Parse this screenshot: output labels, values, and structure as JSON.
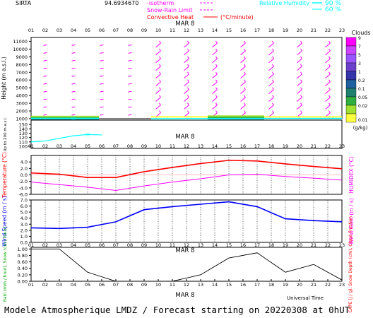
{
  "header": {
    "station": "SIRTA",
    "coords": "94.6934670",
    "legend": [
      {
        "label": "-isotherm",
        "suffix": "",
        "color": "#ff00ff",
        "line_style": "dashed",
        "prefix_style": "mixed"
      },
      {
        "label": "Snow-Rain Limit",
        "suffix": "",
        "color": "#ff00ff",
        "line_style": "dashed"
      },
      {
        "label": "Convective Heat",
        "suffix": "(°C/minute)",
        "color": "#ff0000",
        "line_style": "solid"
      }
    ],
    "rh_legend": {
      "label": "Relative Humidity",
      "values": [
        "90 %",
        "60 %"
      ],
      "color": "#00ffff"
    }
  },
  "time_axis": {
    "ticks": [
      "01",
      "02",
      "03",
      "04",
      "05",
      "06",
      "07",
      "08",
      "09",
      "10",
      "11",
      "12",
      "13",
      "14",
      "15",
      "16",
      "17",
      "18",
      "19",
      "20",
      "21",
      "22",
      "23"
    ],
    "date_label": "MAR 8",
    "xlabel": "Universal Time"
  },
  "clouds_colorbar": {
    "title": "Clouds",
    "unit": "(g/kg)",
    "ticks": [
      "9",
      "7",
      "5",
      "3",
      "1",
      "0.2",
      "0.1",
      "0.05",
      "0.02",
      "0.01"
    ],
    "colors": [
      "#ff00ff",
      "#cc44ff",
      "#9955ff",
      "#6a3fcc",
      "#3333aa",
      "#2060a0",
      "#208070",
      "#30b040",
      "#a0e030",
      "#ffff40"
    ]
  },
  "footer": {
    "text": "Modele Atmospherique LMDZ / Forecast starting on 20220308 at 0hUT"
  },
  "chart_data": [
    {
      "type": "wind_barbs_heightmap",
      "ylabel": "Height (m a.s.l.)",
      "yticks": [
        1000,
        2000,
        3000,
        4000,
        5000,
        6000,
        7000,
        8000,
        9000,
        10000,
        11000
      ],
      "ylim": [
        1000,
        11500
      ],
      "hour_range": [
        1,
        23
      ],
      "barb_hours": [
        2,
        4,
        6,
        8,
        10,
        12,
        14,
        16,
        18,
        20,
        22
      ],
      "barb_levels": [
        1500,
        2500,
        3500,
        4500,
        5500,
        6500,
        7500,
        8500,
        9500,
        10500
      ],
      "rh_labels": [
        "90"
      ],
      "barb_color": "#ff00ff"
    },
    {
      "type": "line",
      "title_date": "MAR 8",
      "ylabel": "Up to 200 m a.s.l.",
      "yticks": [
        100,
        110,
        120,
        130,
        140,
        150
      ],
      "ylim": [
        95,
        160
      ],
      "rh_label": "60",
      "series": [
        {
          "name": "",
          "color": "#00ffff",
          "x": [
            1,
            2,
            3,
            4,
            5,
            6
          ],
          "y": [
            110,
            112,
            118,
            124,
            127,
            126
          ]
        }
      ]
    },
    {
      "type": "line",
      "ylabel_left": "Temperature (°C)",
      "ylabel_right": "HUMIDEX (°C)",
      "yticks": [
        -6.0,
        -4.0,
        -2.0,
        0.0,
        2.0,
        4.0
      ],
      "ylim": [
        -6.0,
        6.0
      ],
      "x": [
        1,
        3,
        5,
        7,
        9,
        11,
        13,
        15,
        17,
        19,
        21,
        23
      ],
      "series": [
        {
          "name": "",
          "color": "#ff0000",
          "y": [
            0.6,
            0.2,
            -0.8,
            -0.8,
            1.0,
            2.3,
            3.5,
            4.5,
            4.3,
            3.4,
            2.6,
            1.9
          ]
        },
        {
          "name": "",
          "color": "#ff00ff",
          "y": [
            -2.2,
            -3.0,
            -3.8,
            -4.8,
            -3.4,
            -2.2,
            -1.2,
            0.0,
            0.2,
            -0.5,
            -1.0,
            -1.6
          ]
        }
      ]
    },
    {
      "type": "line",
      "ylabel_left": "Wind Speed (m / s)",
      "ylabel_right": "Wind Gust (m / s)",
      "yticks": [
        0.0,
        1.0,
        2.0,
        3.0,
        4.0,
        5.0,
        6.0,
        7.0
      ],
      "ylim": [
        0.0,
        7.0
      ],
      "x": [
        1,
        3,
        5,
        7,
        9,
        11,
        13,
        15,
        17,
        19,
        21,
        23
      ],
      "series": [
        {
          "name": "",
          "color": "#0000ff",
          "y": [
            2.4,
            2.3,
            2.5,
            3.4,
            5.4,
            5.9,
            6.3,
            6.7,
            5.9,
            3.9,
            3.6,
            3.4
          ]
        }
      ]
    },
    {
      "type": "line",
      "title_date": "MAR 8",
      "ylabel_left": "Rain (mm / hour), Snow (cm / hour)",
      "ylabel_right": "CAPE (J / g), Snow Depth (cm), Cloud Fraction",
      "yticks": [
        0.0,
        0.2,
        0.4,
        0.6,
        0.8,
        1.0
      ],
      "ylim": [
        0.0,
        1.05
      ],
      "x": [
        1,
        3,
        5,
        7,
        9,
        11,
        13,
        15,
        17,
        19,
        21,
        23
      ],
      "series": [
        {
          "name": "",
          "color": "#000000",
          "y": [
            1.0,
            1.0,
            0.28,
            0.0,
            0.0,
            0.0,
            0.2,
            0.72,
            0.88,
            0.28,
            0.52,
            0.04
          ]
        }
      ]
    }
  ]
}
